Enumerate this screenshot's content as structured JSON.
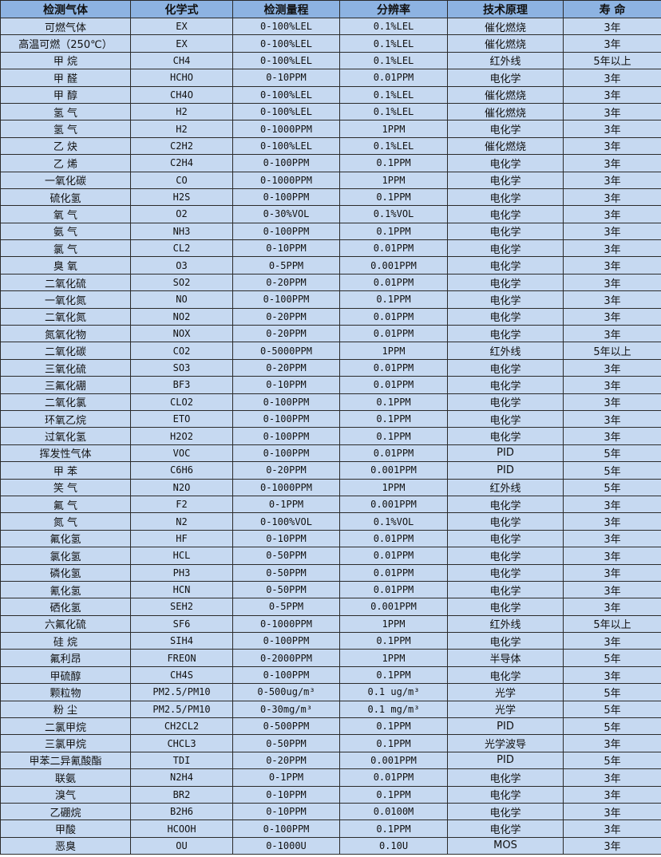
{
  "headers": [
    "检测气体",
    "化学式",
    "检测量程",
    "分辨率",
    "技术原理",
    "寿 命"
  ],
  "rows": [
    [
      "可燃气体",
      "EX",
      "0-100%LEL",
      "0.1%LEL",
      "催化燃烧",
      "3年"
    ],
    [
      "高温可燃（250℃）",
      "EX",
      "0-100%LEL",
      "0.1%LEL",
      "催化燃烧",
      "3年"
    ],
    [
      "甲 烷",
      "CH4",
      "0-100%LEL",
      "0.1%LEL",
      "红外线",
      "5年以上"
    ],
    [
      "甲 醛",
      "HCHO",
      "0-10PPM",
      "0.01PPM",
      "电化学",
      "3年"
    ],
    [
      "甲 醇",
      "CH4O",
      "0-100%LEL",
      "0.1%LEL",
      "催化燃烧",
      "3年"
    ],
    [
      "氢 气",
      "H2",
      "0-100%LEL",
      "0.1%LEL",
      "催化燃烧",
      "3年"
    ],
    [
      "氢 气",
      "H2",
      "0-1000PPM",
      "1PPM",
      "电化学",
      "3年"
    ],
    [
      "乙 炔",
      "C2H2",
      "0-100%LEL",
      "0.1%LEL",
      "催化燃烧",
      "3年"
    ],
    [
      "乙 烯",
      "C2H4",
      "0-100PPM",
      "0.1PPM",
      "电化学",
      "3年"
    ],
    [
      "一氧化碳",
      "CO",
      "0-1000PPM",
      "1PPM",
      "电化学",
      "3年"
    ],
    [
      "硫化氢",
      "H2S",
      "0-100PPM",
      "0.1PPM",
      "电化学",
      "3年"
    ],
    [
      "氧 气",
      "O2",
      "0-30%VOL",
      "0.1%VOL",
      "电化学",
      "3年"
    ],
    [
      "氨 气",
      "NH3",
      "0-100PPM",
      "0.1PPM",
      "电化学",
      "3年"
    ],
    [
      "氯 气",
      "CL2",
      "0-10PPM",
      "0.01PPM",
      "电化学",
      "3年"
    ],
    [
      "臭 氧",
      "O3",
      "0-5PPM",
      "0.001PPM",
      "电化学",
      "3年"
    ],
    [
      "二氧化硫",
      "SO2",
      "0-20PPM",
      "0.01PPM",
      "电化学",
      "3年"
    ],
    [
      "一氧化氮",
      "NO",
      "0-100PPM",
      "0.1PPM",
      "电化学",
      "3年"
    ],
    [
      "二氧化氮",
      "NO2",
      "0-20PPM",
      "0.01PPM",
      "电化学",
      "3年"
    ],
    [
      "氮氧化物",
      "NOX",
      "0-20PPM",
      "0.01PPM",
      "电化学",
      "3年"
    ],
    [
      "二氧化碳",
      "CO2",
      "0-5000PPM",
      "1PPM",
      "红外线",
      "5年以上"
    ],
    [
      "三氧化硫",
      "SO3",
      "0-20PPM",
      "0.01PPM",
      "电化学",
      "3年"
    ],
    [
      "三氟化硼",
      "BF3",
      "0-10PPM",
      "0.01PPM",
      "电化学",
      "3年"
    ],
    [
      "二氧化氯",
      "CLO2",
      "0-100PPM",
      "0.1PPM",
      "电化学",
      "3年"
    ],
    [
      "环氧乙烷",
      "ETO",
      "0-100PPM",
      "0.1PPM",
      "电化学",
      "3年"
    ],
    [
      "过氧化氢",
      "H2O2",
      "0-100PPM",
      "0.1PPM",
      "电化学",
      "3年"
    ],
    [
      "挥发性气体",
      "VOC",
      "0-100PPM",
      "0.01PPM",
      "PID",
      "5年"
    ],
    [
      "甲 苯",
      "C6H6",
      "0-20PPM",
      "0.001PPM",
      "PID",
      "5年"
    ],
    [
      "笑 气",
      "N2O",
      "0-1000PPM",
      "1PPM",
      "红外线",
      "5年"
    ],
    [
      "氟 气",
      "F2",
      "0-1PPM",
      "0.001PPM",
      "电化学",
      "3年"
    ],
    [
      "氮 气",
      "N2",
      "0-100%VOL",
      "0.1%VOL",
      "电化学",
      "3年"
    ],
    [
      "氟化氢",
      "HF",
      "0-10PPM",
      "0.01PPM",
      "电化学",
      "3年"
    ],
    [
      "氯化氢",
      "HCL",
      "0-50PPM",
      "0.01PPM",
      "电化学",
      "3年"
    ],
    [
      "磷化氢",
      "PH3",
      "0-50PPM",
      "0.01PPM",
      "电化学",
      "3年"
    ],
    [
      "氰化氢",
      "HCN",
      "0-50PPM",
      "0.01PPM",
      "电化学",
      "3年"
    ],
    [
      "硒化氢",
      "SEH2",
      "0-5PPM",
      "0.001PPM",
      "电化学",
      "3年"
    ],
    [
      "六氟化硫",
      "SF6",
      "0-1000PPM",
      "1PPM",
      "红外线",
      "5年以上"
    ],
    [
      "硅 烷",
      "SIH4",
      "0-100PPM",
      "0.1PPM",
      "电化学",
      "3年"
    ],
    [
      "氟利昂",
      "FREON",
      "0-2000PPM",
      "1PPM",
      "半导体",
      "5年"
    ],
    [
      "甲硫醇",
      "CH4S",
      "0-100PPM",
      "0.1PPM",
      "电化学",
      "3年"
    ],
    [
      "颗粒物",
      "PM2.5/PM10",
      "0-500ug/m³",
      "0.1 ug/m³",
      "光学",
      "5年"
    ],
    [
      "粉 尘",
      "PM2.5/PM10",
      "0-30mg/m³",
      "0.1 mg/m³",
      "光学",
      "5年"
    ],
    [
      "二氯甲烷",
      "CH2CL2",
      "0-500PPM",
      "0.1PPM",
      "PID",
      "5年"
    ],
    [
      "三氯甲烷",
      "CHCL3",
      "0-50PPM",
      "0.1PPM",
      "光学波导",
      "3年"
    ],
    [
      "甲苯二异氰酸酯",
      "TDI",
      "0-20PPM",
      "0.001PPM",
      "PID",
      "5年"
    ],
    [
      "联氨",
      "N2H4",
      "0-1PPM",
      "0.01PPM",
      "电化学",
      "3年"
    ],
    [
      "溴气",
      "BR2",
      "0-10PPM",
      "0.1PPM",
      "电化学",
      "3年"
    ],
    [
      "乙硼烷",
      "B2H6",
      "0-10PPM",
      "0.0100M",
      "电化学",
      "3年"
    ],
    [
      "甲酸",
      "HCOOH",
      "0-100PPM",
      "0.1PPM",
      "电化学",
      "3年"
    ],
    [
      "恶臭",
      "OU",
      "0-1000U",
      "0.10U",
      "MOS",
      "3年"
    ]
  ],
  "colors": {
    "header_bg": "#8db3e2",
    "row_bg": "#c6d9f1",
    "border": "#2b2b2b"
  }
}
